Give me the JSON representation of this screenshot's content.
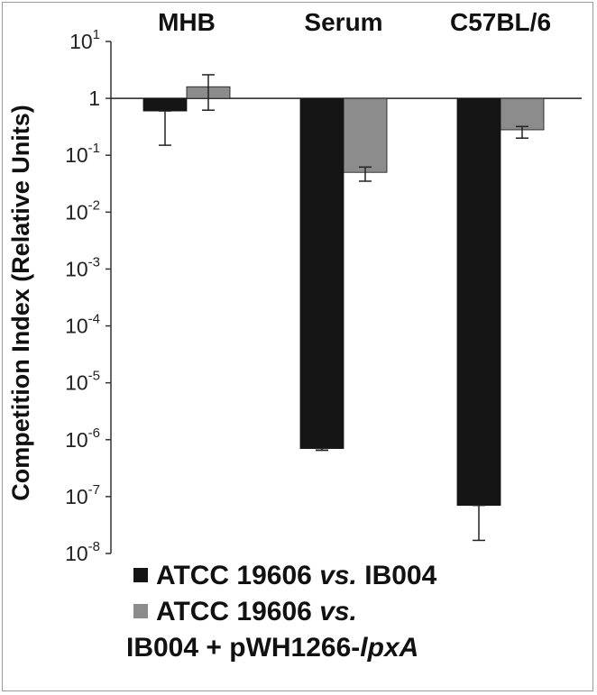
{
  "chart_data": {
    "type": "bar",
    "ylabel": "Competition Index (Relative Units)",
    "y_scale": "log",
    "ylim": [
      1e-08,
      10
    ],
    "y_ticks": [
      {
        "value": 10,
        "base": "10",
        "exp": "1"
      },
      {
        "value": 1,
        "base": "1",
        "exp": ""
      },
      {
        "value": 0.1,
        "base": "10",
        "exp": "-1"
      },
      {
        "value": 0.01,
        "base": "10",
        "exp": "-2"
      },
      {
        "value": 0.001,
        "base": "10",
        "exp": "-3"
      },
      {
        "value": 0.0001,
        "base": "10",
        "exp": "-4"
      },
      {
        "value": 1e-05,
        "base": "10",
        "exp": "-5"
      },
      {
        "value": 1e-06,
        "base": "10",
        "exp": "-6"
      },
      {
        "value": 1e-07,
        "base": "10",
        "exp": "-7"
      },
      {
        "value": 1e-08,
        "base": "10",
        "exp": "-8"
      }
    ],
    "categories": [
      "MHB",
      "Serum",
      "C57BL/6"
    ],
    "series": [
      {
        "name": "ATCC 19606 vs. IB004",
        "color": "#151515",
        "values": [
          0.6,
          7e-07,
          7e-08
        ],
        "error_low": [
          0.15,
          6.5e-07,
          1.7e-08
        ],
        "error_high": [
          0.6,
          7e-07,
          7e-08
        ]
      },
      {
        "name": "ATCC 19606 vs. IB004 + pWH1266-lpxA",
        "color": "#8c8c8c",
        "values": [
          1.6,
          0.05,
          0.28
        ],
        "error_low": [
          0.62,
          0.035,
          0.2
        ],
        "error_high": [
          2.6,
          0.062,
          0.32
        ]
      }
    ],
    "legend": {
      "position": "bottom",
      "entries": [
        {
          "lines": [
            {
              "parts": [
                {
                  "text": "ATCC 19606 ",
                  "style": "normal"
                },
                {
                  "text": "vs.",
                  "style": "italic"
                },
                {
                  "text": " IB004",
                  "style": "normal"
                }
              ]
            }
          ]
        },
        {
          "lines": [
            {
              "parts": [
                {
                  "text": "ATCC 19606 ",
                  "style": "normal"
                },
                {
                  "text": "vs.",
                  "style": "italic"
                }
              ]
            },
            {
              "parts": [
                {
                  "text": "IB004 + pWH1266-",
                  "style": "normal"
                },
                {
                  "text": "lpxA",
                  "style": "italic"
                }
              ]
            }
          ]
        }
      ]
    },
    "grid": false
  }
}
